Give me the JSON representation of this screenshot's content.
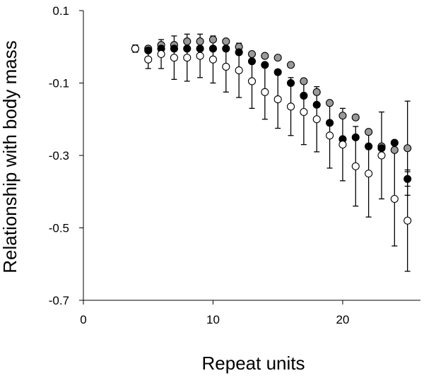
{
  "chart_data": {
    "type": "scatter",
    "title": "",
    "xlabel": "Repeat units",
    "ylabel": "Relationship with body mass",
    "xlim": [
      0,
      26
    ],
    "ylim": [
      -0.7,
      0.1
    ],
    "xticks": [
      0,
      10,
      20
    ],
    "xtick_labels": [
      "0",
      "10",
      "20"
    ],
    "yticks": [
      0.1,
      -0.1,
      -0.3,
      -0.5,
      -0.7
    ],
    "ytick_labels": [
      "0.1",
      "-0.1",
      "-0.3",
      "-0.5",
      "-0.7"
    ],
    "grid": false,
    "legend": false,
    "error_bars": true,
    "series": [
      {
        "fill": "#ffffff",
        "x": [
          4,
          5,
          6,
          7,
          8,
          9,
          10,
          11,
          12,
          13,
          14,
          15,
          16,
          17,
          18,
          19,
          20,
          21,
          22,
          23,
          24,
          25
        ],
        "y": [
          -0.005,
          -0.035,
          -0.02,
          -0.03,
          -0.03,
          -0.025,
          -0.035,
          -0.055,
          -0.065,
          -0.095,
          -0.125,
          -0.145,
          -0.165,
          -0.18,
          -0.2,
          -0.245,
          -0.27,
          -0.33,
          -0.35,
          -0.3,
          -0.42,
          -0.48
        ],
        "err": [
          0.01,
          0.025,
          0.04,
          0.06,
          0.065,
          0.06,
          0.065,
          0.07,
          0.075,
          0.075,
          0.075,
          0.08,
          0.08,
          0.09,
          0.09,
          0.09,
          0.1,
          0.11,
          0.12,
          0.12,
          0.13,
          0.14
        ]
      },
      {
        "fill": "#000000",
        "x": [
          4,
          5,
          6,
          7,
          8,
          9,
          10,
          11,
          12,
          13,
          14,
          15,
          16,
          17,
          18,
          19,
          20,
          21,
          22,
          23,
          24,
          25
        ],
        "y": [
          -0.005,
          -0.01,
          -0.005,
          -0.005,
          -0.005,
          -0.005,
          -0.005,
          -0.005,
          -0.015,
          -0.04,
          -0.05,
          -0.07,
          -0.1,
          -0.135,
          -0.16,
          -0.21,
          -0.255,
          -0.25,
          -0.275,
          -0.28,
          -0.265,
          -0.365
        ],
        "err": [
          0.0,
          0.0,
          0.0,
          0.0,
          0.0,
          0.0,
          0.0,
          0.0,
          0.0,
          0.0,
          0.0,
          0.0,
          0.0,
          0.0,
          0.0,
          0.0,
          0.0,
          0.0,
          0.0,
          0.0,
          0.0,
          0.02
        ]
      },
      {
        "fill": "#999999",
        "x": [
          4,
          5,
          6,
          7,
          8,
          9,
          10,
          11,
          12,
          13,
          14,
          15,
          16,
          17,
          18,
          19,
          20,
          21,
          22,
          23,
          24,
          25
        ],
        "y": [
          -0.005,
          -0.005,
          0.005,
          0.005,
          0.015,
          0.015,
          0.02,
          0.015,
          0.0,
          -0.02,
          -0.025,
          -0.03,
          -0.05,
          -0.095,
          -0.125,
          -0.155,
          -0.19,
          -0.195,
          -0.235,
          -0.275,
          -0.285,
          -0.28
        ],
        "err": [
          0.0,
          0.0,
          0.0,
          0.0,
          0.0,
          0.0,
          0.0,
          0.0,
          0.0,
          0.0,
          0.0,
          0.0,
          0.0,
          0.0,
          0.0,
          0.0,
          0.0,
          0.0,
          0.0,
          0.0,
          0.0,
          0.13
        ]
      }
    ]
  }
}
